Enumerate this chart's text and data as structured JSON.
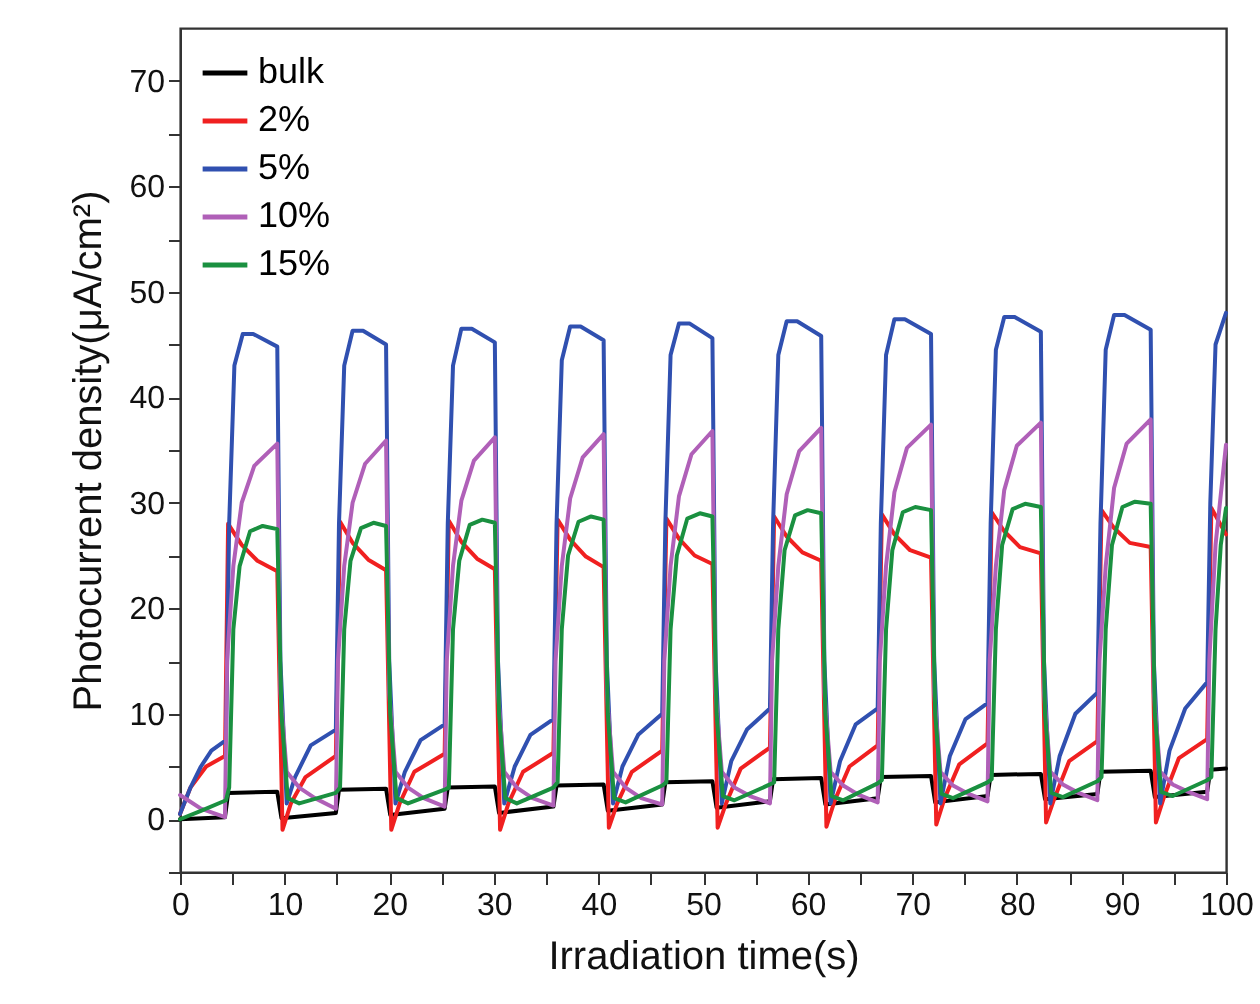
{
  "chart_data": {
    "type": "line",
    "xlabel": "Irradiation time(s)",
    "ylabel": "Photocurrent density(μA/cm²)",
    "xlim": [
      0,
      100
    ],
    "ylim": [
      -5,
      75
    ],
    "xticks": [
      0,
      {
        "value": 5,
        "label": null
      },
      10,
      {
        "value": 15,
        "label": null
      },
      20,
      {
        "value": 25,
        "label": null
      },
      30,
      {
        "value": 35,
        "label": null
      },
      40,
      {
        "value": 45,
        "label": null
      },
      50,
      {
        "value": 55,
        "label": null
      },
      60,
      {
        "value": 65,
        "label": null
      },
      70,
      {
        "value": 75,
        "label": null
      },
      80,
      {
        "value": 85,
        "label": null
      },
      90,
      {
        "value": 95,
        "label": null
      },
      100
    ],
    "yticks": [
      {
        "value": -5,
        "label": null
      },
      0,
      {
        "value": 5,
        "label": null
      },
      10,
      {
        "value": 15,
        "label": null
      },
      20,
      {
        "value": 25,
        "label": null
      },
      30,
      {
        "value": 35,
        "label": null
      },
      40,
      {
        "value": 45,
        "label": null
      },
      50,
      {
        "value": 55,
        "label": null
      },
      60,
      {
        "value": 65,
        "label": null
      },
      70
    ],
    "grid": false,
    "legend": "top left",
    "line_style": "solid",
    "marker": "none",
    "series": [
      {
        "name": "bulk",
        "color": "#000000",
        "x": [
          0,
          4.3,
          4.6,
          9.3,
          9.7,
          14.9,
          15.2,
          19.7,
          20.1,
          25.3,
          25.6,
          30.1,
          30.5,
          35.7,
          36,
          40.5,
          40.9,
          46.1,
          46.4,
          50.9,
          51.3,
          56.4,
          56.7,
          61.3,
          61.7,
          66.7,
          67,
          71.8,
          72.2,
          77.2,
          77.5,
          82.3,
          82.7,
          87.7,
          88,
          92.8,
          93.2,
          98.2,
          98.5,
          100
        ],
        "values": [
          0,
          0.2,
          2.5,
          2.6,
          0.1,
          0.6,
          2.8,
          2.9,
          0.4,
          1.0,
          3.0,
          3.1,
          0.6,
          1.2,
          3.2,
          3.3,
          0.8,
          1.4,
          3.5,
          3.6,
          1.1,
          1.7,
          3.8,
          3.9,
          1.4,
          2.0,
          4.0,
          4.1,
          1.6,
          2.2,
          4.2,
          4.3,
          1.9,
          2.4,
          4.5,
          4.6,
          2.1,
          2.6,
          4.7,
          4.8
        ]
      },
      {
        "name": "2%",
        "color": "#f02020",
        "x": [
          0,
          1,
          2.5,
          4.3,
          4.6,
          5.9,
          7.4,
          9.3,
          9.8,
          10.6,
          12,
          14.9,
          15.3,
          16.5,
          18,
          19.7,
          20.2,
          21,
          22.4,
          25.3,
          25.7,
          26.9,
          28.4,
          30.1,
          30.6,
          31.4,
          32.8,
          35.7,
          36.1,
          37.3,
          38.8,
          40.5,
          41,
          41.8,
          43.2,
          46.1,
          46.5,
          47.7,
          49.2,
          50.9,
          51.4,
          52.2,
          53.6,
          56.4,
          56.8,
          58,
          59.5,
          61.3,
          61.8,
          62.6,
          64,
          66.7,
          67.1,
          68.3,
          69.8,
          71.8,
          72.3,
          73.1,
          74.5,
          77.2,
          77.6,
          78.8,
          80.3,
          82.3,
          82.8,
          83.6,
          85,
          87.7,
          88.1,
          89.3,
          90.8,
          92.8,
          93.3,
          94.1,
          95.5,
          98.2,
          98.6,
          100
        ],
        "values": [
          0.5,
          3,
          5,
          6,
          28,
          26,
          24.5,
          23.5,
          -1,
          1.5,
          4,
          6,
          28.2,
          26.2,
          24.6,
          23.6,
          -1,
          1.5,
          4.5,
          6.2,
          28.3,
          26.3,
          24.7,
          23.7,
          -1,
          1.5,
          4.5,
          6.3,
          28.4,
          26.5,
          24.9,
          23.9,
          -0.8,
          1.5,
          4.5,
          6.5,
          28.5,
          26.6,
          25,
          24.2,
          -0.8,
          1.5,
          4.8,
          6.8,
          28.7,
          26.8,
          25.3,
          24.5,
          -0.7,
          1.8,
          5,
          7,
          28.9,
          27,
          25.5,
          24.8,
          -0.5,
          2,
          5.2,
          7.2,
          29.1,
          27.3,
          25.8,
          25.2,
          -0.3,
          2,
          5.5,
          7.4,
          29.3,
          27.6,
          26.2,
          25.8,
          -0.3,
          2.2,
          5.8,
          7.6,
          29.5,
          27
        ]
      },
      {
        "name": "5%",
        "color": "#3050b0",
        "x": [
          0,
          1,
          2,
          3,
          4.4,
          4.7,
          5.2,
          6,
          7,
          9.3,
          9.6,
          10.2,
          11,
          12.5,
          14.9,
          15.2,
          15.7,
          16.5,
          17.5,
          19.7,
          20,
          20.6,
          21.5,
          23,
          25.3,
          25.6,
          26.1,
          26.9,
          27.9,
          30.1,
          30.4,
          31,
          32,
          33.5,
          35.7,
          36,
          36.5,
          37.3,
          38.3,
          40.5,
          40.8,
          41.4,
          42.3,
          43.8,
          46.1,
          46.4,
          46.9,
          47.7,
          48.7,
          50.9,
          51.2,
          51.8,
          52.7,
          54.2,
          56.4,
          56.7,
          57.2,
          58,
          59,
          61.3,
          61.6,
          62.2,
          63.1,
          64.6,
          66.7,
          67,
          67.5,
          68.3,
          69.3,
          71.8,
          72.1,
          72.7,
          73.6,
          75.1,
          77.2,
          77.5,
          78,
          78.8,
          79.8,
          82.3,
          82.6,
          83.2,
          84.1,
          85.6,
          87.7,
          88,
          88.5,
          89.3,
          90.3,
          92.8,
          93.1,
          93.7,
          94.6,
          96.1,
          98.2,
          98.5,
          99,
          100
        ],
        "values": [
          0.5,
          3,
          5,
          6.5,
          7.5,
          28,
          43,
          46,
          46,
          44.8,
          15,
          1.5,
          4,
          7,
          8.5,
          28,
          43,
          46.3,
          46.3,
          45,
          15,
          1.5,
          4.5,
          7.5,
          9,
          28,
          43,
          46.5,
          46.5,
          45.2,
          15,
          1.5,
          5,
          8,
          9.5,
          28,
          43.5,
          46.7,
          46.7,
          45.4,
          15,
          1.5,
          5,
          8,
          10,
          28,
          44,
          47,
          47,
          45.6,
          15,
          1.5,
          5.5,
          8.5,
          10.5,
          28,
          44,
          47.2,
          47.2,
          45.8,
          15,
          1.5,
          5.5,
          9,
          10.5,
          28,
          44,
          47.4,
          47.4,
          46,
          15,
          1.5,
          6,
          9.5,
          11,
          28,
          44.5,
          47.6,
          47.6,
          46.2,
          15,
          1.5,
          6,
          10,
          12,
          28,
          44.5,
          47.8,
          47.8,
          46.4,
          15,
          1.5,
          6.5,
          10.5,
          13,
          30,
          45,
          48
        ]
      },
      {
        "name": "10%",
        "color": "#b060b8",
        "x": [
          0,
          2,
          4.3,
          4.5,
          5.1,
          5.9,
          7.1,
          9.3,
          9.6,
          10.2,
          11.4,
          12.9,
          14.9,
          15.1,
          15.7,
          16.5,
          17.7,
          19.7,
          20,
          20.6,
          21.8,
          23.3,
          25.3,
          25.5,
          26.1,
          26.9,
          28.1,
          30.1,
          30.4,
          31,
          32.2,
          33.7,
          35.7,
          35.9,
          36.5,
          37.3,
          38.5,
          40.5,
          40.8,
          41.4,
          42.6,
          44.1,
          46.1,
          46.3,
          46.9,
          47.7,
          48.9,
          50.9,
          51.2,
          51.8,
          53,
          54.5,
          56.4,
          56.6,
          57.2,
          58,
          59.2,
          61.3,
          61.6,
          62.2,
          63.4,
          64.9,
          66.7,
          66.9,
          67.5,
          68.3,
          69.5,
          71.8,
          72.1,
          72.7,
          73.9,
          75.4,
          77.2,
          77.4,
          78,
          78.8,
          80,
          82.3,
          82.6,
          83.2,
          84.4,
          85.9,
          87.7,
          87.9,
          88.5,
          89.3,
          90.5,
          92.8,
          93.1,
          93.7,
          94.9,
          96.4,
          98.2,
          98.4,
          99,
          100
        ],
        "values": [
          2.3,
          1,
          0.2,
          15,
          24,
          30,
          33.5,
          35.6,
          12,
          4.5,
          3,
          2,
          1,
          15,
          24,
          30,
          33.7,
          35.9,
          12,
          4.5,
          3,
          2,
          1.2,
          15,
          24,
          30.2,
          34,
          36.2,
          12,
          4.5,
          3,
          2,
          1.3,
          15,
          24,
          30.4,
          34.3,
          36.5,
          12,
          4.5,
          3,
          2,
          1.4,
          15,
          24,
          30.6,
          34.6,
          36.8,
          12,
          4.5,
          3,
          2.2,
          1.5,
          15,
          24,
          30.8,
          34.9,
          37.1,
          12,
          4.5,
          3.2,
          2.3,
          1.6,
          15,
          24,
          31,
          35.2,
          37.4,
          12,
          4.5,
          3.2,
          2.4,
          1.7,
          15,
          24,
          31.2,
          35.4,
          37.6,
          12,
          4.5,
          3.3,
          2.5,
          1.8,
          15,
          24,
          31.4,
          35.6,
          37.9,
          12,
          4.5,
          3.3,
          2.6,
          1.9,
          15,
          26,
          35.5
        ]
      },
      {
        "name": "15%",
        "color": "#1a9040",
        "x": [
          0,
          2,
          4.4,
          4.7,
          5.1,
          5.7,
          6.7,
          7.9,
          9.3,
          9.7,
          10.3,
          11.4,
          14.9,
          15.3,
          15.7,
          16.3,
          17.3,
          18.5,
          19.7,
          20.1,
          20.7,
          21.8,
          25.3,
          25.7,
          26.1,
          26.7,
          27.7,
          28.9,
          30.1,
          30.5,
          31.1,
          32.2,
          35.7,
          36.1,
          36.5,
          37.1,
          38.1,
          39.3,
          40.5,
          40.9,
          41.5,
          42.6,
          46.1,
          46.5,
          46.9,
          47.5,
          48.5,
          49.7,
          50.9,
          51.3,
          51.9,
          53,
          56.4,
          56.8,
          57.2,
          57.8,
          58.8,
          60,
          61.3,
          61.7,
          62.3,
          63.4,
          66.7,
          67.1,
          67.5,
          68.1,
          69.1,
          70.3,
          71.8,
          72.2,
          72.8,
          73.9,
          77.2,
          77.6,
          78,
          78.6,
          79.6,
          80.8,
          82.3,
          82.7,
          83.3,
          84.4,
          87.7,
          88.1,
          88.5,
          89.1,
          90.1,
          91.3,
          92.8,
          93.2,
          93.8,
          94.9,
          98.2,
          98.6,
          99,
          99.5,
          100
        ],
        "values": [
          0,
          0.8,
          1.8,
          3,
          18,
          24,
          27.3,
          27.8,
          27.5,
          10,
          2,
          1.5,
          2.5,
          3,
          18,
          24.5,
          27.6,
          28.1,
          27.8,
          10,
          2,
          1.5,
          2.8,
          3,
          18,
          24.5,
          27.9,
          28.4,
          28.1,
          10,
          2,
          1.5,
          3,
          3.5,
          18,
          25,
          28.2,
          28.7,
          28.4,
          10,
          2,
          1.6,
          3.2,
          3.5,
          18,
          25,
          28.5,
          29,
          28.7,
          10,
          2.2,
          1.8,
          3.3,
          3.5,
          18,
          25.5,
          28.8,
          29.3,
          29,
          10,
          2.2,
          1.8,
          3.4,
          3.7,
          18,
          25.5,
          29.1,
          29.6,
          29.3,
          10,
          2.4,
          2,
          3.5,
          3.8,
          18,
          26,
          29.4,
          29.9,
          29.6,
          10,
          2.5,
          2.1,
          3.6,
          4,
          18,
          26,
          29.6,
          30.1,
          29.9,
          10,
          2.6,
          2.2,
          3.7,
          4,
          18,
          26,
          29.5
        ]
      }
    ]
  }
}
